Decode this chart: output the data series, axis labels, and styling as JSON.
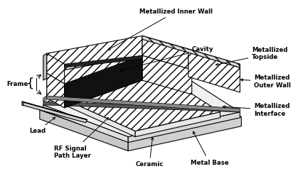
{
  "bg_color": "#ffffff",
  "line_color": "#000000",
  "labels": {
    "metallized_inner_wall": "Metallized Inner Wall",
    "cavity": "Cavity",
    "metallized_topside": "Metallized\nTopside",
    "frame": "Frame",
    "lead": "Lead",
    "rf_signal": "RF Signal\nPath Layer",
    "ceramic": "Ceramic",
    "metal_base": "Metal Base",
    "metallized_outer_wall": "Metallized\nOuter Wall",
    "metallized_interface": "Metallized\nInterface"
  },
  "figsize": [
    4.27,
    2.62
  ],
  "dpi": 100
}
